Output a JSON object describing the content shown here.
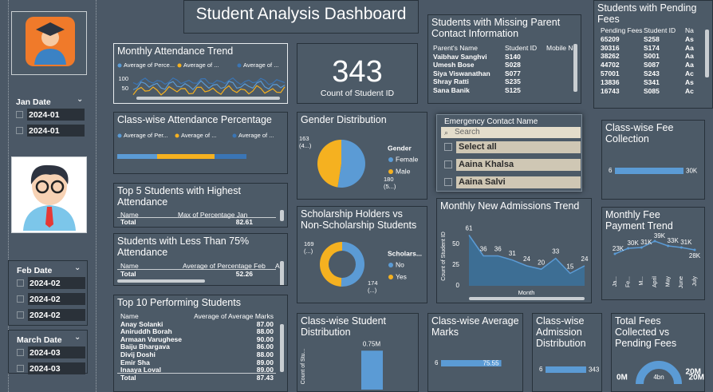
{
  "header": {
    "title": "Student Analysis Dashboard"
  },
  "slicers": [
    {
      "title": "Jan Date",
      "items": [
        "2024-01",
        "2024-01"
      ]
    },
    {
      "title": "Feb Date",
      "items": [
        "2024-02",
        "2024-02",
        "2024-02"
      ]
    },
    {
      "title": "March Date",
      "items": [
        "2024-03",
        "2024-03"
      ]
    }
  ],
  "attendance_trend": {
    "title": "Monthly Attendance Trend",
    "legend": [
      "Average of Perce...",
      "Average of ...",
      "Average of ..."
    ],
    "yticks": [
      100,
      50
    ]
  },
  "classwise_attendance": {
    "title": "Class-wise Attendance Percentage",
    "legend": [
      "Average of Per...",
      "Average of ...",
      "Average of ..."
    ]
  },
  "kpi": {
    "value": 343,
    "label": "Count of Student ID"
  },
  "missing_parent": {
    "title": "Students with Missing Parent Contact Information",
    "columns": [
      "Parent's Name",
      "Student ID",
      "Mobile No"
    ],
    "rows": [
      [
        "Vaibhav Sanghvi",
        "S140"
      ],
      [
        "Umesh Bose",
        "S028"
      ],
      [
        "Siya Viswanathan",
        "S077"
      ],
      [
        "Shray Ratti",
        "S235"
      ],
      [
        "Sana Banik",
        "S125"
      ]
    ]
  },
  "pending_fees": {
    "title": "Students with Pending Fees",
    "columns": [
      "Pending Fees",
      "Student ID",
      "Na"
    ],
    "rows": [
      [
        "65209",
        "S258",
        "As"
      ],
      [
        "30316",
        "S174",
        "Aa"
      ],
      [
        "38262",
        "S001",
        "Aa"
      ],
      [
        "44702",
        "S087",
        "Aa"
      ],
      [
        "57001",
        "S243",
        "Ac"
      ],
      [
        "13836",
        "S341",
        "As"
      ],
      [
        "16743",
        "S085",
        "Ac"
      ]
    ]
  },
  "top5": {
    "title": "Top 5 Students with Highest Attendance",
    "columns": [
      "Name",
      "Max of Percentage Jan"
    ],
    "rows": [],
    "total": [
      "Total",
      "82.61"
    ]
  },
  "below75": {
    "title": "Students with Less Than 75% Attendance",
    "columns": [
      "Name",
      "Average of Percentage Feb",
      "A"
    ],
    "rows": [],
    "total": [
      "Total",
      "52.26"
    ]
  },
  "top10": {
    "title": "Top 10 Performing Students",
    "columns": [
      "Name",
      "Average of Average Marks"
    ],
    "rows": [
      [
        "Anay Solanki",
        "87.00"
      ],
      [
        "Aniruddh Borah",
        "88.00"
      ],
      [
        "Armaan Varughese",
        "90.00"
      ],
      [
        "Baiju Bhargava",
        "86.00"
      ],
      [
        "Divij Doshi",
        "88.00"
      ],
      [
        "Emir Sha",
        "89.00"
      ],
      [
        "Inaaya Loval",
        "89.00"
      ]
    ],
    "total": [
      "Total",
      "87.43"
    ]
  },
  "gender": {
    "title": "Gender Distribution",
    "legend_title": "Gender",
    "slices": [
      {
        "name": "Female",
        "value": 180,
        "label": "(5...)",
        "color": "#5b9bd5"
      },
      {
        "name": "Male",
        "value": 163,
        "label": "(4...)",
        "color": "#f5b120"
      }
    ]
  },
  "scholarship": {
    "title": "Scholarship Holders vs Non-Scholarship Students",
    "legend_title": "Scholars...",
    "slices": [
      {
        "name": "No",
        "value": 174,
        "label": "(...)",
        "color": "#5b9bd5"
      },
      {
        "name": "Yes",
        "value": 169,
        "label": "(...)",
        "color": "#f5b120"
      }
    ]
  },
  "emergency": {
    "title": "Emergency Contact Name",
    "search": "Search",
    "items": [
      "Select all",
      "Aaina Khalsa",
      "Aaina Salvi"
    ]
  },
  "admissions": {
    "type": "line",
    "title": "Monthly New Admissions Trend",
    "y_title": "Count of Student ID",
    "x_title": "Month",
    "values": [
      61,
      36,
      36,
      31,
      24,
      20,
      33,
      15,
      24
    ],
    "ylim": [
      0,
      70
    ],
    "yticks": [
      0,
      25,
      50
    ],
    "color": "#5b9bd5"
  },
  "fee_trend": {
    "type": "line",
    "title": "Monthly Fee Payment Trend",
    "categories": [
      "Ja...",
      "Fe...",
      "M...",
      "April",
      "May",
      "June",
      "July"
    ],
    "values": [
      23000,
      30000,
      31000,
      39000,
      33000,
      31000,
      28000
    ],
    "value_labels": [
      "23K",
      "30K",
      "31K",
      "39K",
      "33K",
      "31K",
      "28K"
    ],
    "ylim": [
      0,
      49000
    ],
    "color": "#5b9bd5"
  },
  "class_fee": {
    "type": "bar",
    "title": "Class-wise Fee Collection",
    "categories": [
      "6"
    ],
    "values": [
      30000
    ],
    "value_labels": [
      "30K"
    ],
    "xlim": [
      0,
      30000
    ],
    "color": "#5b9bd5"
  },
  "class_students": {
    "type": "bar",
    "title": "Class-wise Student Distribution",
    "y_title": "Count of Stu...",
    "values": [
      750000
    ],
    "value_labels": [
      "0.75M"
    ],
    "ylim": [
      0,
      800000
    ],
    "color": "#5b9bd5"
  },
  "class_marks": {
    "type": "bar",
    "title": "Class-wise Average Marks",
    "categories": [
      "6"
    ],
    "values": [
      75.55
    ],
    "xlim": [
      0,
      100
    ],
    "color": "#5b9bd5"
  },
  "class_admission": {
    "type": "bar",
    "title": "Class-wise Admission Distribution",
    "categories": [
      "6"
    ],
    "values": [
      343
    ],
    "xlim": [
      0,
      350
    ],
    "color": "#5b9bd5"
  },
  "total_fees": {
    "title": "Total Fees Collected vs Pending Fees",
    "min_label": "0M",
    "value_label": "4bn",
    "max_label": "20M",
    "target_label": "20M"
  }
}
